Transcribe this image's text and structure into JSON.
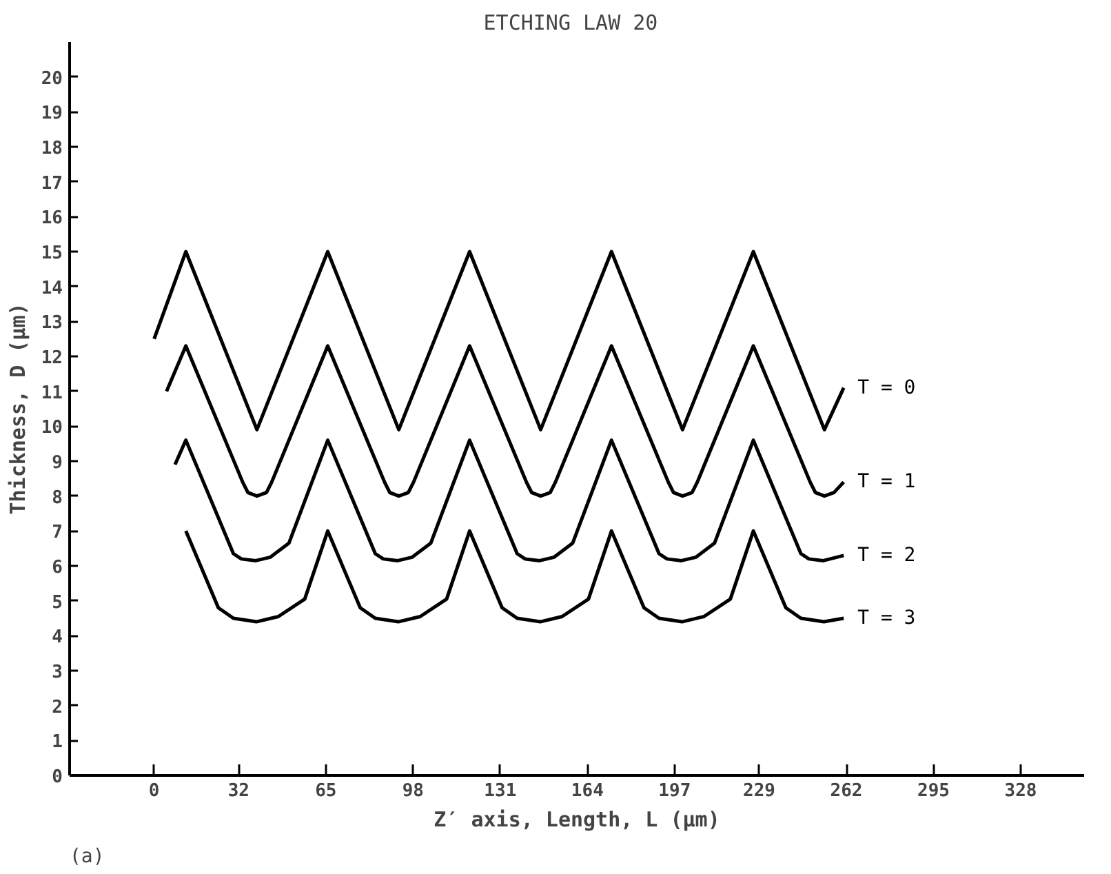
{
  "chart_data": {
    "type": "line",
    "title": "ETCHING LAW  20",
    "xlabel": "Z′ axis, Length, L (µm)",
    "ylabel": "Thickness, D (µm)",
    "annotations": [
      "(a)"
    ],
    "xlim": [
      -32,
      352
    ],
    "ylim": [
      0,
      21
    ],
    "xticks": [
      0,
      32,
      65,
      98,
      131,
      164,
      197,
      229,
      262,
      295,
      328
    ],
    "yticks": [
      0,
      1,
      2,
      3,
      4,
      5,
      6,
      7,
      8,
      9,
      10,
      11,
      12,
      13,
      14,
      15,
      16,
      17,
      18,
      19,
      20
    ],
    "grid": false,
    "legend": false,
    "marker": "none",
    "line_style": "solid",
    "series": [
      {
        "name": "T = 0",
        "color": "#000000",
        "x": [
          0,
          12,
          38.9,
          65.7,
          92.6,
          119.4,
          146.3,
          173.1,
          200,
          226.8,
          253.7,
          261
        ],
        "values": [
          12.5,
          15,
          9.9,
          15,
          9.9,
          15,
          9.9,
          15,
          9.9,
          15,
          9.9,
          11.1
        ]
      },
      {
        "name": "T = 1",
        "color": "#000000",
        "x": [
          4.7,
          12,
          33.5,
          35.5,
          38.9,
          42.5,
          44.5,
          65.7,
          87.2,
          89.2,
          92.6,
          96.2,
          98.2,
          119.4,
          140.9,
          142.9,
          146.3,
          149.9,
          151.9,
          173.1,
          194.6,
          196.6,
          200,
          203.6,
          205.6,
          226.8,
          248.3,
          250.3,
          253.7,
          257.3,
          261
        ],
        "values": [
          11.0,
          12.3,
          8.4,
          8.1,
          8.0,
          8.1,
          8.4,
          12.3,
          8.4,
          8.1,
          8.0,
          8.1,
          8.4,
          12.3,
          8.4,
          8.1,
          8.0,
          8.1,
          8.4,
          12.3,
          8.4,
          8.1,
          8.0,
          8.1,
          8.4,
          12.3,
          8.4,
          8.1,
          8.0,
          8.1,
          8.4
        ]
      },
      {
        "name": "T = 2",
        "color": "#000000",
        "x": [
          7.9,
          12,
          30,
          33,
          38.5,
          44,
          51,
          65.7,
          83.7,
          86.7,
          92.2,
          97.7,
          104.7,
          119.4,
          137.4,
          140.4,
          145.9,
          151.4,
          158.4,
          173.1,
          191.1,
          194.1,
          199.6,
          205.1,
          212.1,
          226.8,
          244.8,
          247.8,
          253.3,
          261
        ],
        "values": [
          8.9,
          9.6,
          6.35,
          6.2,
          6.15,
          6.25,
          6.65,
          9.6,
          6.35,
          6.2,
          6.15,
          6.25,
          6.65,
          9.6,
          6.35,
          6.2,
          6.15,
          6.25,
          6.65,
          9.6,
          6.35,
          6.2,
          6.15,
          6.25,
          6.65,
          9.6,
          6.35,
          6.2,
          6.15,
          6.3
        ]
      },
      {
        "name": "T = 3",
        "color": "#000000",
        "x": [
          12,
          24.3,
          30,
          38.7,
          47,
          57,
          65.7,
          78,
          83.7,
          92.4,
          100.7,
          110.7,
          119.4,
          131.7,
          137.4,
          146.1,
          154.4,
          164.4,
          173.1,
          185.4,
          191.1,
          199.8,
          208.1,
          218.1,
          226.8,
          239.1,
          244.8,
          253.5,
          261
        ],
        "values": [
          7.0,
          4.8,
          4.5,
          4.4,
          4.55,
          5.05,
          7.0,
          4.8,
          4.5,
          4.4,
          4.55,
          5.05,
          7.0,
          4.8,
          4.5,
          4.4,
          4.55,
          5.05,
          7.0,
          4.8,
          4.5,
          4.4,
          4.55,
          5.05,
          7.0,
          4.8,
          4.5,
          4.4,
          4.5
        ]
      }
    ]
  }
}
